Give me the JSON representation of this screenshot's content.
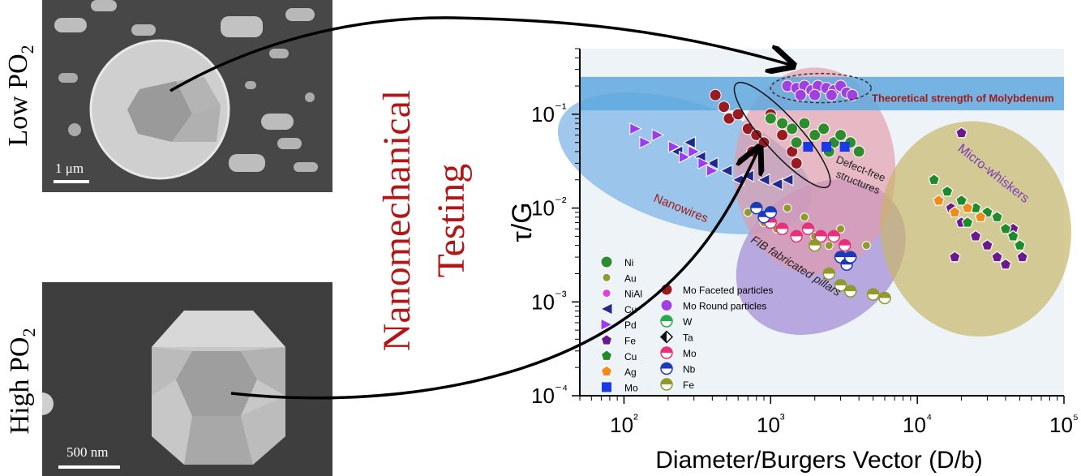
{
  "left_panels": {
    "top": {
      "label": "Low PO2",
      "scale": "1 μm"
    },
    "bottom": {
      "label": "High PO2",
      "scale": "500 nm"
    }
  },
  "center_title": {
    "line1": "Nanomechanical",
    "line2": "Testing"
  },
  "chart_data": {
    "type": "scatter",
    "xlabel": "Diameter/Burgers Vector (D/b)",
    "ylabel": "τ/G",
    "x_scale": "log",
    "y_scale": "log",
    "xlim": [
      50,
      100000
    ],
    "ylim": [
      0.0001,
      0.5
    ],
    "x_ticks": [
      "10²",
      "10³",
      "10⁴",
      "10⁵"
    ],
    "y_ticks": [
      "10⁻¹",
      "10⁻²",
      "10⁻³",
      "10⁻⁴"
    ],
    "band": {
      "label": "Theoretical strength of Molybdenum",
      "y_range": [
        0.11,
        0.25
      ],
      "color": "#5fa8de"
    },
    "regions": [
      {
        "label": "Nanowires",
        "color": "#7fb6e6"
      },
      {
        "label": "FIB fabricated pillars",
        "color": "#a58fd8"
      },
      {
        "label": "Defect-free structures",
        "color": "#e49aa9"
      },
      {
        "label": "Micro-whiskers",
        "color": "#c8b66a"
      }
    ],
    "legend_left": [
      {
        "name": "Ni",
        "color": "#2e8b2e",
        "marker": "circle"
      },
      {
        "name": "Au",
        "color": "#8f9a2a",
        "marker": "circle-small"
      },
      {
        "name": "NiAl",
        "color": "#e040e0",
        "marker": "circle-small"
      },
      {
        "name": "Cu",
        "color": "#1e2a8c",
        "marker": "triangle-left"
      },
      {
        "name": "Pd",
        "color": "#9a3cf0",
        "marker": "triangle-right"
      },
      {
        "name": "Fe",
        "color": "#6a1a8a",
        "marker": "pentagon"
      },
      {
        "name": "Cu",
        "color": "#1f8a2a",
        "marker": "pentagon"
      },
      {
        "name": "Ag",
        "color": "#f08a1a",
        "marker": "pentagon"
      },
      {
        "name": "Mo",
        "color": "#1a3ae8",
        "marker": "square"
      }
    ],
    "legend_right": [
      {
        "name": "Mo Faceted particles",
        "color": "#9a1a22",
        "marker": "circle"
      },
      {
        "name": "Mo Round particles",
        "color": "#a040e0",
        "marker": "circle"
      },
      {
        "name": "W",
        "color": "#2aa84a",
        "marker": "half"
      },
      {
        "name": "Ta",
        "color": "#111111",
        "marker": "diamond-half"
      },
      {
        "name": "Mo",
        "color": "#e8307a",
        "marker": "half"
      },
      {
        "name": "Nb",
        "color": "#1a3ab8",
        "marker": "half"
      },
      {
        "name": "Fe",
        "color": "#8f9a2a",
        "marker": "half"
      }
    ],
    "series": [
      {
        "name": "Mo Round particles",
        "color": "#a040e0",
        "points": [
          [
            1300,
            0.2
          ],
          [
            1500,
            0.19
          ],
          [
            1700,
            0.2
          ],
          [
            1900,
            0.18
          ],
          [
            2100,
            0.2
          ],
          [
            2400,
            0.19
          ],
          [
            2700,
            0.18
          ],
          [
            3000,
            0.2
          ],
          [
            3300,
            0.17
          ],
          [
            1600,
            0.16
          ],
          [
            2000,
            0.16
          ],
          [
            2600,
            0.16
          ],
          [
            3600,
            0.16
          ]
        ]
      },
      {
        "name": "Mo Faceted particles",
        "color": "#9a1a22",
        "points": [
          [
            420,
            0.16
          ],
          [
            480,
            0.12
          ],
          [
            520,
            0.09
          ],
          [
            600,
            0.1
          ],
          [
            700,
            0.07
          ],
          [
            800,
            0.06
          ],
          [
            900,
            0.05
          ],
          [
            1000,
            0.1
          ],
          [
            1200,
            0.06
          ],
          [
            1400,
            0.04
          ],
          [
            1500,
            0.03
          ],
          [
            750,
            0.04
          ]
        ]
      },
      {
        "name": "Ni",
        "color": "#2e8b2e",
        "points": [
          [
            1000,
            0.09
          ],
          [
            1200,
            0.08
          ],
          [
            1400,
            0.07
          ],
          [
            1700,
            0.08
          ],
          [
            2000,
            0.06
          ],
          [
            2300,
            0.07
          ],
          [
            2700,
            0.05
          ],
          [
            3000,
            0.06
          ],
          [
            3500,
            0.05
          ],
          [
            1500,
            0.05
          ],
          [
            2500,
            0.04
          ],
          [
            4000,
            0.04
          ]
        ]
      },
      {
        "name": "Cu (triangle)",
        "color": "#1e2a8c",
        "points": [
          [
            230,
            0.04
          ],
          [
            280,
            0.05
          ],
          [
            330,
            0.035
          ],
          [
            400,
            0.03
          ],
          [
            500,
            0.025
          ],
          [
            600,
            0.02
          ],
          [
            700,
            0.022
          ],
          [
            900,
            0.02
          ],
          [
            1100,
            0.018
          ],
          [
            1300,
            0.02
          ]
        ]
      },
      {
        "name": "Pd",
        "color": "#9a3cf0",
        "points": [
          [
            120,
            0.07
          ],
          [
            140,
            0.05
          ],
          [
            170,
            0.06
          ],
          [
            220,
            0.045
          ],
          [
            260,
            0.035
          ],
          [
            300,
            0.04
          ],
          [
            350,
            0.03
          ],
          [
            400,
            0.025
          ]
        ]
      },
      {
        "name": "Au",
        "color": "#8f9a2a",
        "points": [
          [
            700,
            0.009
          ],
          [
            900,
            0.007
          ],
          [
            1100,
            0.006
          ],
          [
            1300,
            0.01
          ],
          [
            1700,
            0.008
          ],
          [
            2000,
            0.005
          ],
          [
            2500,
            0.004
          ],
          [
            3000,
            0.006
          ],
          [
            3500,
            0.003
          ],
          [
            4500,
            0.004
          ]
        ]
      },
      {
        "name": "Mo (half)",
        "color": "#e8307a",
        "points": [
          [
            1000,
            0.007
          ],
          [
            1200,
            0.006
          ],
          [
            1500,
            0.005
          ],
          [
            1800,
            0.006
          ],
          [
            2200,
            0.005
          ],
          [
            2700,
            0.005
          ],
          [
            3200,
            0.004
          ]
        ]
      },
      {
        "name": "Nb",
        "color": "#1a3ab8",
        "points": [
          [
            800,
            0.01
          ],
          [
            900,
            0.008
          ],
          [
            1000,
            0.009
          ],
          [
            3000,
            0.003
          ],
          [
            3300,
            0.0025
          ],
          [
            3500,
            0.003
          ]
        ]
      },
      {
        "name": "Fe (half)",
        "color": "#8f9a2a",
        "points": [
          [
            2000,
            0.004
          ],
          [
            2500,
            0.002
          ],
          [
            3000,
            0.0015
          ],
          [
            3500,
            0.0013
          ],
          [
            5000,
            0.0012
          ],
          [
            6000,
            0.0011
          ]
        ]
      },
      {
        "name": "Fe (pentagon)",
        "color": "#6a1a8a",
        "points": [
          [
            17000,
            0.01
          ],
          [
            20000,
            0.007
          ],
          [
            25000,
            0.005
          ],
          [
            30000,
            0.004
          ],
          [
            35000,
            0.003
          ],
          [
            40000,
            0.0025
          ],
          [
            45000,
            0.006
          ],
          [
            18000,
            0.003
          ],
          [
            52000,
            0.003
          ],
          [
            20000,
            0.063
          ]
        ]
      },
      {
        "name": "Cu (pentagon)",
        "color": "#1f8a2a",
        "points": [
          [
            13000,
            0.02
          ],
          [
            16000,
            0.015
          ],
          [
            20000,
            0.012
          ],
          [
            25000,
            0.01
          ],
          [
            30000,
            0.009
          ],
          [
            35000,
            0.008
          ],
          [
            40000,
            0.006
          ],
          [
            45000,
            0.005
          ],
          [
            50000,
            0.004
          ],
          [
            22000,
            0.007
          ]
        ]
      },
      {
        "name": "Ag",
        "color": "#f08a1a",
        "points": [
          [
            14000,
            0.012
          ],
          [
            18000,
            0.009
          ],
          [
            22000,
            0.01
          ],
          [
            27000,
            0.008
          ]
        ]
      },
      {
        "name": "Mo (square)",
        "color": "#1a3ae8",
        "points": [
          [
            1800,
            0.045
          ],
          [
            2400,
            0.045
          ],
          [
            3200,
            0.045
          ]
        ]
      }
    ],
    "annotations": [
      {
        "text": "Nanowires",
        "color": "#a01a1a"
      },
      {
        "text": "FIB fabricated pillars",
        "color": "#222222"
      },
      {
        "text": "Defect-free structures",
        "color": "#222222"
      },
      {
        "text": "Micro-whiskers",
        "color": "#7a3ab8"
      }
    ]
  }
}
